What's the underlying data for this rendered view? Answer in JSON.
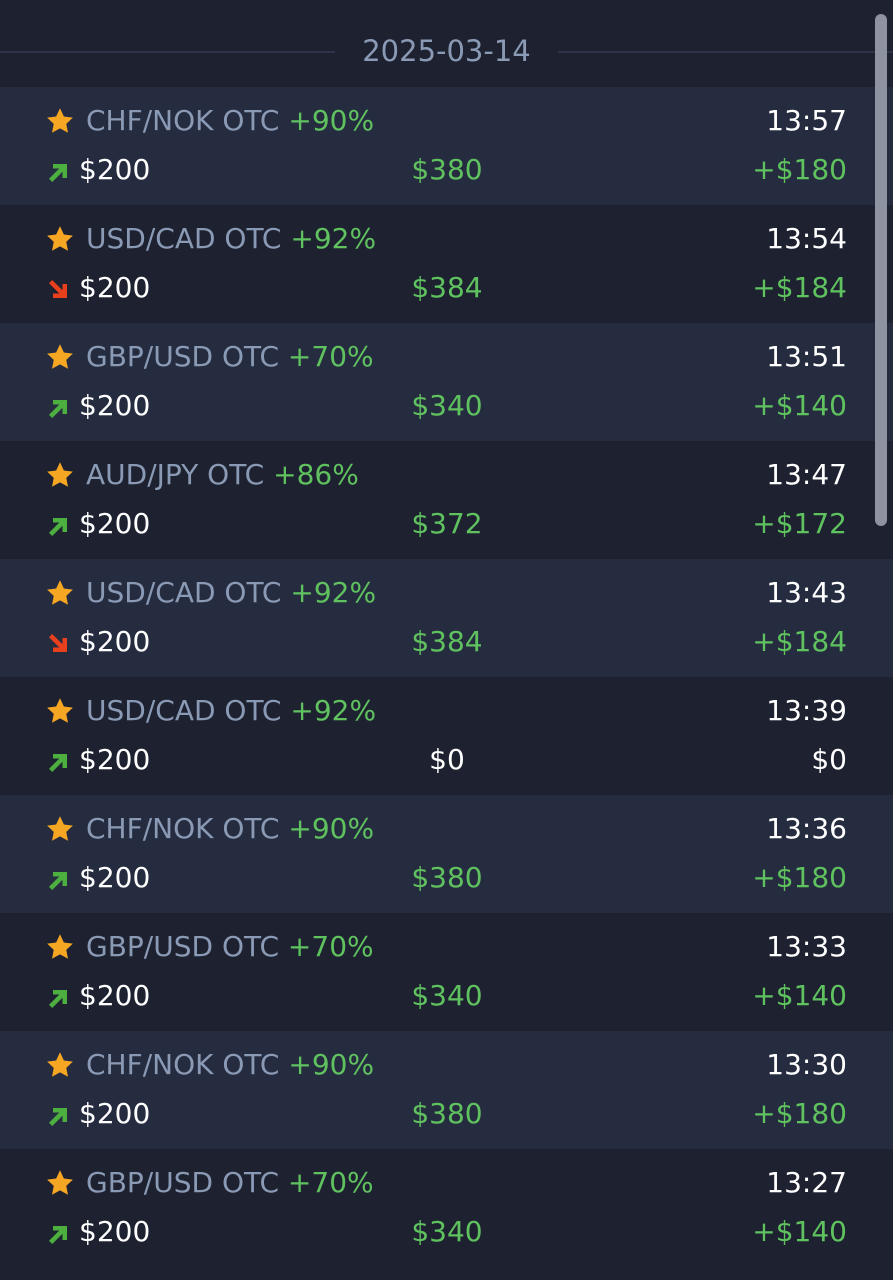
{
  "date": "2025-03-14",
  "colors": {
    "background": "#1d2130",
    "row_alt": "#262c40",
    "positive": "#5fc25f",
    "asset": "#8a9ab5",
    "star": "#f5a623",
    "arrow_up": "#4caf3f",
    "arrow_down": "#e8401c"
  },
  "trades": [
    {
      "asset": "CHF/NOK OTC",
      "payout_pct": "+90%",
      "time": "13:57",
      "direction": "up",
      "amount": "$200",
      "payout": "$380",
      "profit": "+$180",
      "result": "win"
    },
    {
      "asset": "USD/CAD OTC",
      "payout_pct": "+92%",
      "time": "13:54",
      "direction": "down",
      "amount": "$200",
      "payout": "$384",
      "profit": "+$184",
      "result": "win"
    },
    {
      "asset": "GBP/USD OTC",
      "payout_pct": "+70%",
      "time": "13:51",
      "direction": "up",
      "amount": "$200",
      "payout": "$340",
      "profit": "+$140",
      "result": "win"
    },
    {
      "asset": "AUD/JPY OTC",
      "payout_pct": "+86%",
      "time": "13:47",
      "direction": "up",
      "amount": "$200",
      "payout": "$372",
      "profit": "+$172",
      "result": "win"
    },
    {
      "asset": "USD/CAD OTC",
      "payout_pct": "+92%",
      "time": "13:43",
      "direction": "down",
      "amount": "$200",
      "payout": "$384",
      "profit": "+$184",
      "result": "win"
    },
    {
      "asset": "USD/CAD OTC",
      "payout_pct": "+92%",
      "time": "13:39",
      "direction": "up",
      "amount": "$200",
      "payout": "$0",
      "profit": "$0",
      "result": "loss"
    },
    {
      "asset": "CHF/NOK OTC",
      "payout_pct": "+90%",
      "time": "13:36",
      "direction": "up",
      "amount": "$200",
      "payout": "$380",
      "profit": "+$180",
      "result": "win"
    },
    {
      "asset": "GBP/USD OTC",
      "payout_pct": "+70%",
      "time": "13:33",
      "direction": "up",
      "amount": "$200",
      "payout": "$340",
      "profit": "+$140",
      "result": "win"
    },
    {
      "asset": "CHF/NOK OTC",
      "payout_pct": "+90%",
      "time": "13:30",
      "direction": "up",
      "amount": "$200",
      "payout": "$380",
      "profit": "+$180",
      "result": "win"
    },
    {
      "asset": "GBP/USD OTC",
      "payout_pct": "+70%",
      "time": "13:27",
      "direction": "up",
      "amount": "$200",
      "payout": "$340",
      "profit": "+$140",
      "result": "win"
    }
  ]
}
